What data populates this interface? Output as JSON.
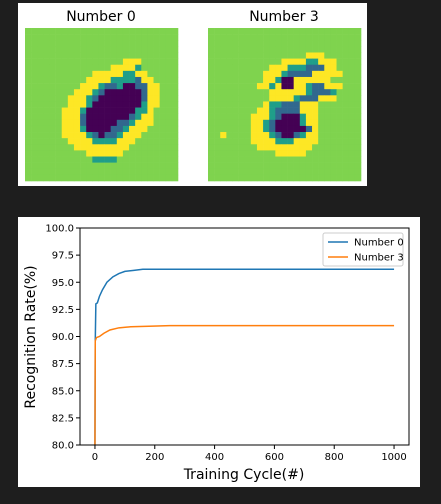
{
  "digits": {
    "panels": [
      {
        "title": "Number 0",
        "grid": [
          "0000000000000000000000000",
          "0000000000000000000000000",
          "0000000000000000000000000",
          "0000000000000000000000000",
          "0000000000000000000000000",
          "0000000000000000444000000",
          "0000000000000044443000000",
          "0000000000044444334400000",
          "0000000000444433332440000",
          "0000000004443223112244000",
          "0000000044432111111244000",
          "0000000444321111111244000",
          "0000000444311111111344000",
          "0000004443111111113340000",
          "0000004442111111123440000",
          "0000004442111112234440000",
          "0000004443111122344400000",
          "0000004444321223444000000",
          "0000000444433334440000000",
          "0000000044444444400000000",
          "0000000000444444000000000",
          "0000000000033330000000000",
          "0000000000000000000000000",
          "0000000000000000000000000",
          "0000000000000000000000000"
        ]
      },
      {
        "title": "Number 3",
        "grid": [
          "0000000000000000000000000",
          "0000000000000000000000000",
          "0000000000000000000000000",
          "0000000000000000000000000",
          "0000000000000000444000000",
          "0000000000004444334440000",
          "0000000000444333222440000",
          "0000000004443222244444000",
          "0000000004431144444400000",
          "0000000044341144322444000",
          "0000000000444444322230000",
          "0000000000444432224440000",
          "0000000004332224440000000",
          "0000000044322224440000000",
          "0000000444321113440000000",
          "0000000443211113440000000",
          "0000000443211111240000000",
          "0040000444321123440000000",
          "0000000444433344440000000",
          "0000000044444444400000000",
          "0000000000044444000000000",
          "0000000000000000000000000",
          "0000000000000000000000000",
          "0000000000000000000000000",
          "0000000000000000000000000"
        ]
      }
    ],
    "palette": {
      "0": "#7fd34e",
      "1": "#440154",
      "2": "#31688e",
      "3": "#1f9e89",
      "4": "#fde725"
    }
  },
  "chart_data": {
    "type": "line",
    "title": "",
    "xlabel": "Training Cycle(#)",
    "ylabel": "Recognition Rate(%)",
    "xlim": [
      -50,
      1050
    ],
    "ylim": [
      80.0,
      100.0
    ],
    "x_ticks": [
      0,
      200,
      400,
      600,
      800,
      1000
    ],
    "y_ticks": [
      80.0,
      82.5,
      85.0,
      87.5,
      90.0,
      92.5,
      95.0,
      97.5,
      100.0
    ],
    "x_tick_labels": [
      "0",
      "200",
      "400",
      "600",
      "800",
      "1000"
    ],
    "y_tick_labels": [
      "80.0",
      "82.5",
      "85.0",
      "87.5",
      "90.0",
      "92.5",
      "95.0",
      "97.5",
      "100.0"
    ],
    "grid": false,
    "legend_position": "top-right",
    "series": [
      {
        "name": "Number 0",
        "color": "#1f77b4",
        "points": [
          [
            0,
            80.0
          ],
          [
            1,
            89.5
          ],
          [
            3,
            93.0
          ],
          [
            8,
            93.1
          ],
          [
            15,
            93.7
          ],
          [
            25,
            94.3
          ],
          [
            40,
            95.0
          ],
          [
            60,
            95.5
          ],
          [
            80,
            95.8
          ],
          [
            100,
            96.0
          ],
          [
            130,
            96.1
          ],
          [
            160,
            96.2
          ],
          [
            200,
            96.2
          ],
          [
            300,
            96.2
          ],
          [
            500,
            96.2
          ],
          [
            700,
            96.2
          ],
          [
            900,
            96.2
          ],
          [
            1000,
            96.2
          ]
        ]
      },
      {
        "name": "Number 3",
        "color": "#ff7f0e",
        "points": [
          [
            0,
            80.0
          ],
          [
            1,
            89.6
          ],
          [
            5,
            89.9
          ],
          [
            15,
            90.0
          ],
          [
            30,
            90.3
          ],
          [
            50,
            90.6
          ],
          [
            80,
            90.8
          ],
          [
            120,
            90.9
          ],
          [
            180,
            90.95
          ],
          [
            250,
            91.0
          ],
          [
            400,
            91.0
          ],
          [
            600,
            91.0
          ],
          [
            800,
            91.0
          ],
          [
            1000,
            91.0
          ]
        ]
      }
    ]
  }
}
